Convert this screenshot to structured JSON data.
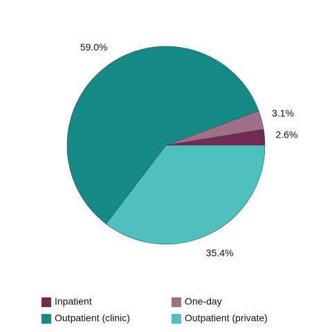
{
  "chart_data": {
    "type": "pie",
    "categories": [
      "Inpatient",
      "One-day",
      "Outpatient (clinic)",
      "Outpatient (private)"
    ],
    "values": [
      2.6,
      3.1,
      59.0,
      35.4
    ],
    "value_labels": [
      "2.6%",
      "3.1%",
      "59.0%",
      "35.4%"
    ],
    "colors": [
      "#722a55",
      "#a07088",
      "#168a87",
      "#4fc1bd"
    ],
    "legend": "bottom"
  }
}
